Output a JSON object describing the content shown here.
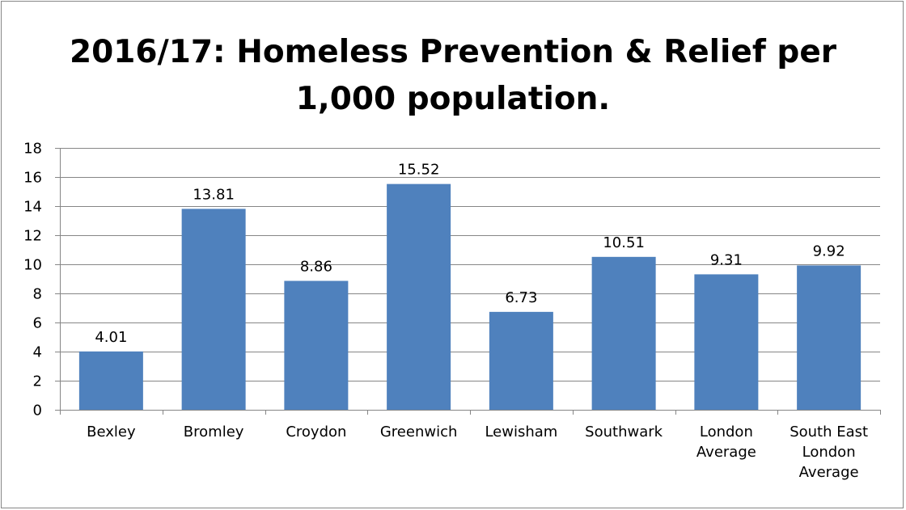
{
  "chart_data": {
    "type": "bar",
    "title_lines": [
      "2016/17:  Homeless Prevention & Relief per",
      "1,000 population."
    ],
    "categories": [
      [
        "Bexley"
      ],
      [
        "Bromley"
      ],
      [
        "Croydon"
      ],
      [
        "Greenwich"
      ],
      [
        "Lewisham"
      ],
      [
        "Southwark"
      ],
      [
        "London",
        "Average"
      ],
      [
        "South East",
        "London",
        "Average"
      ]
    ],
    "values": [
      4.01,
      13.81,
      8.86,
      15.52,
      6.73,
      10.51,
      9.31,
      9.92
    ],
    "data_labels": [
      "4.01",
      "13.81",
      "8.86",
      "15.52",
      "6.73",
      "10.51",
      "9.31",
      "9.92"
    ],
    "y_ticks": [
      0,
      2,
      4,
      6,
      8,
      10,
      12,
      14,
      16,
      18
    ],
    "ylim": [
      0,
      18
    ],
    "grid": true,
    "legend": "none",
    "bar_color": "#4F81BD",
    "grid_color": "#868686"
  }
}
